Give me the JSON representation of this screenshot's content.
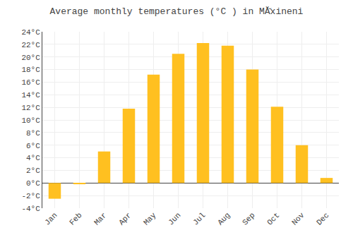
{
  "chart_data": {
    "type": "bar",
    "title": "Average monthly temperatures (°C ) in MĂ̆xineni",
    "categories": [
      "Jan",
      "Feb",
      "Mar",
      "Apr",
      "May",
      "Jun",
      "Jul",
      "Aug",
      "Sep",
      "Oct",
      "Nov",
      "Dec"
    ],
    "values": [
      -2.5,
      -0.2,
      5.0,
      11.8,
      17.2,
      20.5,
      22.2,
      21.8,
      18.0,
      12.1,
      6.0,
      0.8
    ],
    "color": "#FFC020",
    "ylim": [
      -4,
      24
    ],
    "yticks": [
      {
        "value": -4,
        "label": "-4°C"
      },
      {
        "value": -2,
        "label": "-2°C"
      },
      {
        "value": 0,
        "label": "0°C"
      },
      {
        "value": 2,
        "label": "2°C"
      },
      {
        "value": 4,
        "label": "4°C"
      },
      {
        "value": 6,
        "label": "6°C"
      },
      {
        "value": 8,
        "label": "8°C"
      },
      {
        "value": 10,
        "label": "10°C"
      },
      {
        "value": 12,
        "label": "12°C"
      },
      {
        "value": 14,
        "label": "14°C"
      },
      {
        "value": 16,
        "label": "16°C"
      },
      {
        "value": 18,
        "label": "18°C"
      },
      {
        "value": 20,
        "label": "20°C"
      },
      {
        "value": 22,
        "label": "22°C"
      },
      {
        "value": 24,
        "label": "24°C"
      }
    ],
    "grid": true
  }
}
